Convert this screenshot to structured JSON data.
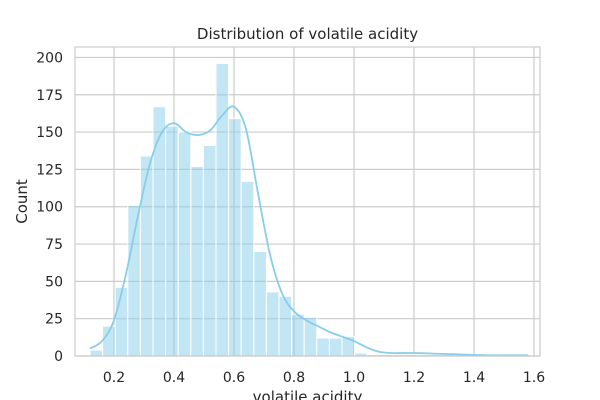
{
  "chart_data": {
    "type": "bar",
    "title": "Distribution of volatile acidity",
    "xlabel": "volatile acidity",
    "ylabel": "Count",
    "xlim": [
      0.07,
      1.62
    ],
    "ylim": [
      0,
      207
    ],
    "xticks": [
      "0.2",
      "0.4",
      "0.6",
      "0.8",
      "1.0",
      "1.2",
      "1.4",
      "1.6"
    ],
    "yticks": [
      "0",
      "25",
      "50",
      "75",
      "100",
      "125",
      "150",
      "175",
      "200"
    ],
    "grid": true,
    "bins": [
      {
        "x0": 0.12,
        "x1": 0.162,
        "count": 4
      },
      {
        "x0": 0.162,
        "x1": 0.204,
        "count": 20
      },
      {
        "x0": 0.204,
        "x1": 0.246,
        "count": 46
      },
      {
        "x0": 0.246,
        "x1": 0.288,
        "count": 101
      },
      {
        "x0": 0.288,
        "x1": 0.33,
        "count": 134
      },
      {
        "x0": 0.33,
        "x1": 0.372,
        "count": 167
      },
      {
        "x0": 0.372,
        "x1": 0.414,
        "count": 154
      },
      {
        "x0": 0.414,
        "x1": 0.456,
        "count": 150
      },
      {
        "x0": 0.456,
        "x1": 0.498,
        "count": 127
      },
      {
        "x0": 0.498,
        "x1": 0.54,
        "count": 141
      },
      {
        "x0": 0.54,
        "x1": 0.582,
        "count": 196
      },
      {
        "x0": 0.582,
        "x1": 0.624,
        "count": 159
      },
      {
        "x0": 0.624,
        "x1": 0.666,
        "count": 117
      },
      {
        "x0": 0.666,
        "x1": 0.708,
        "count": 70
      },
      {
        "x0": 0.708,
        "x1": 0.75,
        "count": 43
      },
      {
        "x0": 0.75,
        "x1": 0.792,
        "count": 40
      },
      {
        "x0": 0.792,
        "x1": 0.834,
        "count": 28
      },
      {
        "x0": 0.834,
        "x1": 0.876,
        "count": 26
      },
      {
        "x0": 0.876,
        "x1": 0.918,
        "count": 12
      },
      {
        "x0": 0.918,
        "x1": 0.96,
        "count": 12
      },
      {
        "x0": 0.96,
        "x1": 1.002,
        "count": 13
      },
      {
        "x0": 1.002,
        "x1": 1.044,
        "count": 2
      },
      {
        "x0": 1.044,
        "x1": 1.086,
        "count": 1
      },
      {
        "x0": 1.086,
        "x1": 1.128,
        "count": 1
      },
      {
        "x0": 1.128,
        "x1": 1.17,
        "count": 1
      },
      {
        "x0": 1.17,
        "x1": 1.212,
        "count": 1
      },
      {
        "x0": 1.212,
        "x1": 1.254,
        "count": 1
      },
      {
        "x0": 1.254,
        "x1": 1.296,
        "count": 1
      },
      {
        "x0": 1.296,
        "x1": 1.338,
        "count": 1
      },
      {
        "x0": 1.338,
        "x1": 1.38,
        "count": 1
      },
      {
        "x0": 1.38,
        "x1": 1.422,
        "count": 0
      },
      {
        "x0": 1.422,
        "x1": 1.464,
        "count": 0
      },
      {
        "x0": 1.464,
        "x1": 1.506,
        "count": 0
      },
      {
        "x0": 1.506,
        "x1": 1.548,
        "count": 0
      },
      {
        "x0": 1.548,
        "x1": 1.59,
        "count": 1
      }
    ],
    "kde": [
      [
        0.12,
        5
      ],
      [
        0.16,
        10
      ],
      [
        0.2,
        24
      ],
      [
        0.24,
        55
      ],
      [
        0.28,
        94
      ],
      [
        0.32,
        129
      ],
      [
        0.36,
        150
      ],
      [
        0.4,
        156
      ],
      [
        0.44,
        150
      ],
      [
        0.48,
        148
      ],
      [
        0.52,
        151
      ],
      [
        0.56,
        161
      ],
      [
        0.6,
        167
      ],
      [
        0.64,
        152
      ],
      [
        0.68,
        109
      ],
      [
        0.72,
        68
      ],
      [
        0.76,
        42
      ],
      [
        0.8,
        30
      ],
      [
        0.84,
        24
      ],
      [
        0.88,
        20
      ],
      [
        0.92,
        16
      ],
      [
        0.96,
        13
      ],
      [
        1.0,
        10
      ],
      [
        1.04,
        6
      ],
      [
        1.08,
        3
      ],
      [
        1.12,
        2
      ],
      [
        1.2,
        2
      ],
      [
        1.28,
        1.5
      ],
      [
        1.36,
        1
      ],
      [
        1.44,
        0.5
      ],
      [
        1.52,
        0.5
      ],
      [
        1.58,
        0.5
      ]
    ],
    "bar_color": "#87ceeb",
    "kde_color": "#87ceeb",
    "grid_color": "#cccccc",
    "axes_edge_color": "#cccccc"
  }
}
